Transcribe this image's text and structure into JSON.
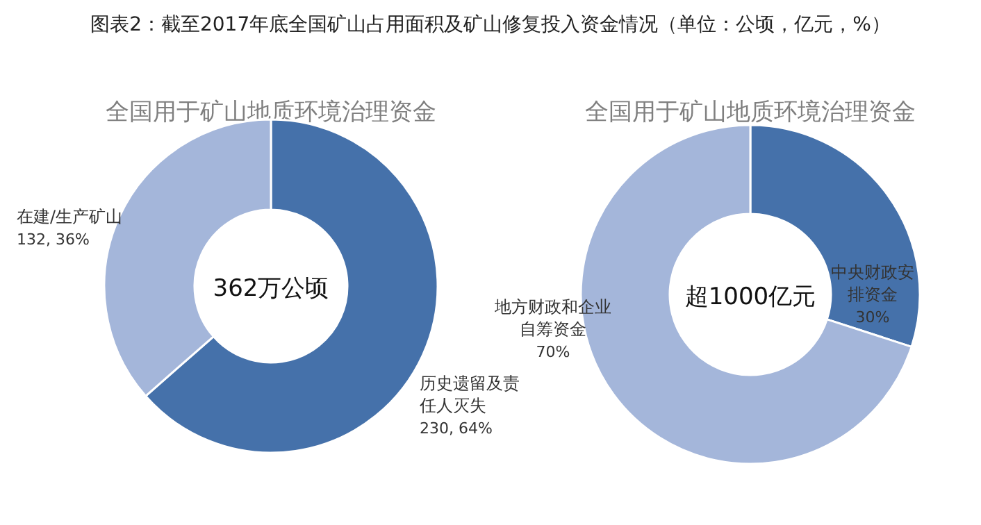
{
  "chart_data": [
    {
      "type": "donut",
      "title": "图表2：截至2017年底全国矿山占用面积及矿山修复投入资金情况（单位：公顷，亿元，%）",
      "subtitle": "全国用于矿山地质环境治理资金",
      "categories": [
        "历史遗留及责任人灭失",
        "在建/生产矿山"
      ],
      "values": [
        230,
        132
      ],
      "value_labels": [
        "230, 64%",
        "132, 36%"
      ],
      "colors": [
        "#4571aa",
        "#a4b6da"
      ],
      "annotations": [
        "362万公顷"
      ]
    },
    {
      "type": "donut",
      "title": "全国用于矿山地质环境治理资金",
      "categories": [
        "中央财政安排资金",
        "地方财政和企业自筹资金"
      ],
      "values": [
        30,
        70
      ],
      "value_labels": [
        "30%",
        "70%"
      ],
      "colors": [
        "#4571aa",
        "#a4b6da"
      ],
      "annotations": [
        "超1000亿元"
      ]
    }
  ]
}
